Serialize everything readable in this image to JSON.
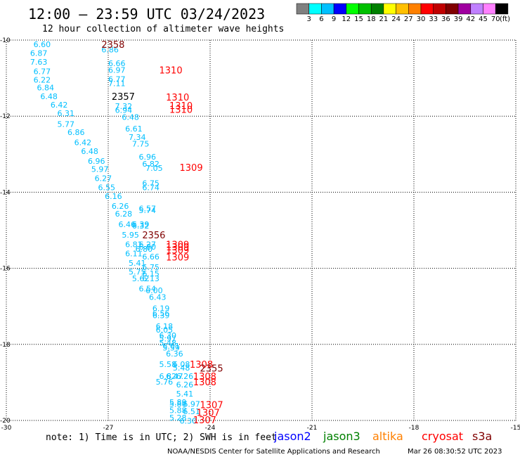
{
  "header": {
    "title": "12:00 – 23:59 UTC 03/24/2023",
    "subtitle": "12 hour collection of altimeter wave heights"
  },
  "legend": {
    "colors": [
      "#808080",
      "#00ffff",
      "#00c0ff",
      "#0000ff",
      "#00ff00",
      "#00c000",
      "#008000",
      "#ffff00",
      "#ffc000",
      "#ff8000",
      "#ff0000",
      "#c00000",
      "#800000",
      "#a000a0",
      "#c080ff",
      "#ff80ff",
      "#000000"
    ],
    "labels": [
      "3",
      "6",
      "9",
      "12",
      "15",
      "18",
      "21",
      "24",
      "27",
      "30",
      "33",
      "36",
      "39",
      "42",
      "45",
      "70"
    ],
    "unit": "(ft)"
  },
  "footer": {
    "note": "note: 1) Time is in UTC; 2) SWH is in feet",
    "credit": "NOAA/NESDIS Center for Satellite Applications and Research",
    "timestamp": "Mar 26 08:30:52 UTC 2023",
    "satellites": [
      {
        "name": "jason2",
        "color": "#0000ff"
      },
      {
        "name": "jason3",
        "color": "#008000"
      },
      {
        "name": "altika",
        "color": "#ff8000"
      },
      {
        "name": "cryosat",
        "color": "#ff0000"
      },
      {
        "name": "s3a",
        "color": "#800000"
      }
    ]
  },
  "chart_data": {
    "type": "scatter",
    "xlim": [
      -30,
      -15
    ],
    "ylim": [
      -20,
      -10
    ],
    "x_ticks": [
      "-30",
      "-27",
      "-24",
      "-21",
      "-18",
      "-15"
    ],
    "y_ticks": [
      "-10",
      "-12",
      "-14",
      "-16",
      "-18",
      "-20"
    ],
    "grid": true,
    "swh_color": "#00bfff",
    "time_colors": {
      "2355": "#800000",
      "2356": "#800000",
      "2357": "#000000",
      "2358": "#800000",
      "1307": "#ff0000",
      "1308": "#ff0000",
      "1309": "#ff0000",
      "1310": "#ff0000"
    },
    "swh_points": [
      {
        "x": -29.2,
        "y": -10.11,
        "label": "6.60"
      },
      {
        "x": -27.2,
        "y": -10.25,
        "label": "6.86"
      },
      {
        "x": -29.3,
        "y": -10.34,
        "label": "6.87"
      },
      {
        "x": -27.0,
        "y": -10.61,
        "label": "6.66"
      },
      {
        "x": -29.3,
        "y": -10.57,
        "label": "7.63"
      },
      {
        "x": -29.2,
        "y": -10.82,
        "label": "6.77"
      },
      {
        "x": -27.0,
        "y": -10.79,
        "label": "6.97"
      },
      {
        "x": -27.0,
        "y": -11.03,
        "label": "6.77"
      },
      {
        "x": -29.2,
        "y": -11.04,
        "label": "6.22"
      },
      {
        "x": -27.0,
        "y": -11.14,
        "label": "7.11"
      },
      {
        "x": -29.1,
        "y": -11.25,
        "label": "6.84"
      },
      {
        "x": -29.0,
        "y": -11.48,
        "label": "6.48"
      },
      {
        "x": -28.7,
        "y": -11.7,
        "label": "6.42"
      },
      {
        "x": -26.8,
        "y": -11.74,
        "label": "7.32"
      },
      {
        "x": -26.8,
        "y": -11.84,
        "label": "6.94"
      },
      {
        "x": -28.5,
        "y": -11.92,
        "label": "6.31"
      },
      {
        "x": -26.6,
        "y": -12.02,
        "label": "6.48"
      },
      {
        "x": -28.5,
        "y": -12.21,
        "label": "5.77"
      },
      {
        "x": -26.5,
        "y": -12.33,
        "label": "6.61"
      },
      {
        "x": -28.2,
        "y": -12.42,
        "label": "6.86"
      },
      {
        "x": -26.4,
        "y": -12.55,
        "label": "7.34"
      },
      {
        "x": -28.0,
        "y": -12.69,
        "label": "6.42"
      },
      {
        "x": -26.3,
        "y": -12.73,
        "label": "7.75"
      },
      {
        "x": -27.8,
        "y": -12.92,
        "label": "6.48"
      },
      {
        "x": -26.1,
        "y": -13.07,
        "label": "6.96"
      },
      {
        "x": -27.6,
        "y": -13.18,
        "label": "6.96"
      },
      {
        "x": -26.0,
        "y": -13.25,
        "label": "6.82"
      },
      {
        "x": -27.5,
        "y": -13.39,
        "label": "5.97"
      },
      {
        "x": -25.9,
        "y": -13.36,
        "label": "7.05"
      },
      {
        "x": -27.4,
        "y": -13.63,
        "label": "6.27"
      },
      {
        "x": -26.0,
        "y": -13.76,
        "label": "6.75"
      },
      {
        "x": -27.3,
        "y": -13.87,
        "label": "6.55"
      },
      {
        "x": -26.0,
        "y": -13.87,
        "label": "6.74"
      },
      {
        "x": -27.1,
        "y": -14.1,
        "label": "6.16"
      },
      {
        "x": -26.9,
        "y": -14.36,
        "label": "6.26"
      },
      {
        "x": -26.1,
        "y": -14.43,
        "label": "6.57"
      },
      {
        "x": -26.1,
        "y": -14.47,
        "label": "5.74"
      },
      {
        "x": -26.8,
        "y": -14.57,
        "label": "6.28"
      },
      {
        "x": -26.7,
        "y": -14.84,
        "label": "6.46"
      },
      {
        "x": -26.3,
        "y": -14.84,
        "label": "6.39"
      },
      {
        "x": -26.3,
        "y": -14.88,
        "label": "6.32"
      },
      {
        "x": -26.6,
        "y": -15.12,
        "label": "5.95"
      },
      {
        "x": -26.5,
        "y": -15.37,
        "label": "6.81"
      },
      {
        "x": -26.1,
        "y": -15.37,
        "label": "6.27"
      },
      {
        "x": -26.1,
        "y": -15.43,
        "label": "6.80"
      },
      {
        "x": -26.2,
        "y": -15.49,
        "label": "6.80"
      },
      {
        "x": -26.5,
        "y": -15.61,
        "label": "6.11"
      },
      {
        "x": -26.0,
        "y": -15.69,
        "label": "6.66"
      },
      {
        "x": -26.4,
        "y": -15.86,
        "label": "5.41"
      },
      {
        "x": -26.0,
        "y": -15.97,
        "label": "6.75"
      },
      {
        "x": -26.4,
        "y": -16.09,
        "label": "5.75"
      },
      {
        "x": -26.0,
        "y": -16.14,
        "label": "6.15"
      },
      {
        "x": -26.3,
        "y": -16.27,
        "label": "5.62"
      },
      {
        "x": -26.0,
        "y": -16.27,
        "label": "6.13"
      },
      {
        "x": -26.1,
        "y": -16.53,
        "label": "6.54"
      },
      {
        "x": -25.9,
        "y": -16.58,
        "label": "6.00"
      },
      {
        "x": -25.8,
        "y": -16.76,
        "label": "6.43"
      },
      {
        "x": -25.7,
        "y": -17.05,
        "label": "6.19"
      },
      {
        "x": -25.7,
        "y": -17.18,
        "label": "6.56"
      },
      {
        "x": -25.7,
        "y": -17.24,
        "label": "6.39"
      },
      {
        "x": -25.6,
        "y": -17.52,
        "label": "6.18"
      },
      {
        "x": -25.6,
        "y": -17.62,
        "label": "6.05"
      },
      {
        "x": -25.5,
        "y": -17.76,
        "label": "6.30"
      },
      {
        "x": -25.5,
        "y": -17.85,
        "label": "5.97"
      },
      {
        "x": -25.5,
        "y": -17.96,
        "label": "5.48"
      },
      {
        "x": -25.4,
        "y": -18.04,
        "label": "6.61"
      },
      {
        "x": -25.4,
        "y": -18.09,
        "label": "5.59"
      },
      {
        "x": -25.3,
        "y": -18.24,
        "label": "6.36"
      },
      {
        "x": -25.5,
        "y": -18.52,
        "label": "5.58"
      },
      {
        "x": -25.1,
        "y": -18.52,
        "label": "6.08"
      },
      {
        "x": -25.1,
        "y": -18.61,
        "label": "5.48"
      },
      {
        "x": -25.5,
        "y": -18.84,
        "label": "6.82"
      },
      {
        "x": -25.0,
        "y": -18.84,
        "label": "6.26"
      },
      {
        "x": -25.3,
        "y": -18.84,
        "label": "6.47"
      },
      {
        "x": -25.6,
        "y": -18.98,
        "label": "5.76"
      },
      {
        "x": -25.0,
        "y": -19.06,
        "label": "6.26"
      },
      {
        "x": -25.0,
        "y": -19.3,
        "label": "5.41"
      },
      {
        "x": -25.2,
        "y": -19.52,
        "label": "5.89"
      },
      {
        "x": -25.2,
        "y": -19.57,
        "label": "5.80"
      },
      {
        "x": -24.8,
        "y": -19.57,
        "label": "6.97"
      },
      {
        "x": -25.2,
        "y": -19.73,
        "label": "5.88"
      },
      {
        "x": -24.8,
        "y": -19.76,
        "label": "6.51"
      },
      {
        "x": -25.2,
        "y": -19.93,
        "label": "5.28"
      },
      {
        "x": -24.9,
        "y": -20.01,
        "label": "6.30"
      }
    ],
    "time_labels": [
      {
        "x": -27.2,
        "y": -10.11,
        "label": "2358"
      },
      {
        "x": -25.5,
        "y": -10.79,
        "label": "1310"
      },
      {
        "x": -26.9,
        "y": -11.48,
        "label": "2357"
      },
      {
        "x": -25.3,
        "y": -11.5,
        "label": "1310"
      },
      {
        "x": -25.2,
        "y": -11.72,
        "label": "1310"
      },
      {
        "x": -25.2,
        "y": -11.82,
        "label": "1310"
      },
      {
        "x": -24.9,
        "y": -13.35,
        "label": "1309"
      },
      {
        "x": -26.0,
        "y": -15.12,
        "label": "2356"
      },
      {
        "x": -25.3,
        "y": -15.37,
        "label": "1309"
      },
      {
        "x": -25.3,
        "y": -15.43,
        "label": "1309"
      },
      {
        "x": -25.3,
        "y": -15.52,
        "label": "1309"
      },
      {
        "x": -25.3,
        "y": -15.7,
        "label": "1309"
      },
      {
        "x": -24.6,
        "y": -18.52,
        "label": "1308"
      },
      {
        "x": -24.3,
        "y": -18.62,
        "label": "2355"
      },
      {
        "x": -24.5,
        "y": -18.84,
        "label": "1308"
      },
      {
        "x": -24.5,
        "y": -18.98,
        "label": "1308"
      },
      {
        "x": -24.3,
        "y": -19.58,
        "label": "1307"
      },
      {
        "x": -24.4,
        "y": -19.79,
        "label": "1307"
      },
      {
        "x": -24.5,
        "y": -19.98,
        "label": "1307"
      }
    ]
  }
}
